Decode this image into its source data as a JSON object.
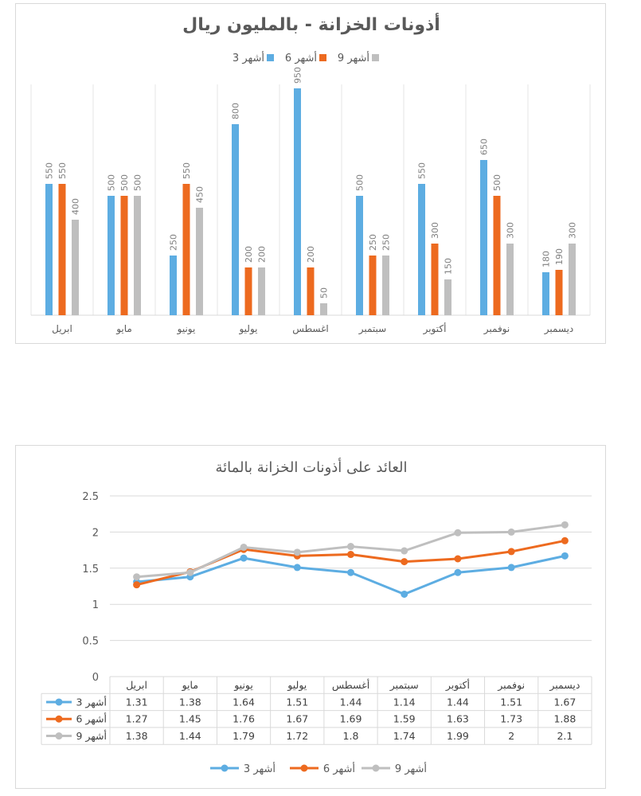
{
  "chart_data": [
    {
      "type": "bar",
      "title": "أذونات الخزانة - بالمليون ريال",
      "categories": [
        "ابريل",
        "مايو",
        "يونيو",
        "يوليو",
        "اغسطس",
        "سبتمبر",
        "أكتوبر",
        "نوفمبر",
        "ديسمبر"
      ],
      "series": [
        {
          "name": "3 أشهر",
          "color": "#5DADE2",
          "values": [
            550,
            500,
            250,
            800,
            950,
            500,
            550,
            650,
            180
          ]
        },
        {
          "name": "6 أشهر",
          "color": "#ED6A1F",
          "values": [
            550,
            500,
            550,
            200,
            200,
            250,
            300,
            500,
            190
          ]
        },
        {
          "name": "9 أشهر",
          "color": "#BFBFBF",
          "values": [
            400,
            500,
            450,
            200,
            50,
            250,
            150,
            300,
            300
          ]
        }
      ],
      "ylim": [
        0,
        1000
      ],
      "legend": "top",
      "grid": "vertical"
    },
    {
      "type": "line",
      "title": "العائد على أذونات الخزانة بالمائة",
      "categories": [
        "ابريل",
        "مايو",
        "يونيو",
        "يوليو",
        "أغسطس",
        "سبتمبر",
        "أكتوبر",
        "نوفمبر",
        "ديسمبر"
      ],
      "series": [
        {
          "name": "3 أشهر",
          "color": "#5DADE2",
          "values": [
            1.31,
            1.38,
            1.64,
            1.51,
            1.44,
            1.14,
            1.44,
            1.51,
            1.67
          ]
        },
        {
          "name": "6 أشهر",
          "color": "#ED6A1F",
          "values": [
            1.27,
            1.45,
            1.76,
            1.67,
            1.69,
            1.59,
            1.63,
            1.73,
            1.88
          ]
        },
        {
          "name": "9 أشهر",
          "color": "#BFBFBF",
          "values": [
            1.38,
            1.44,
            1.79,
            1.72,
            1.8,
            1.74,
            1.99,
            2,
            2.1
          ]
        }
      ],
      "yticks": [
        "0",
        "0.5",
        "1",
        "1.5",
        "2",
        "2.5"
      ],
      "ylim": [
        0,
        2.5
      ],
      "legend": "bottom",
      "grid": "horizontal",
      "data_table": true
    }
  ]
}
